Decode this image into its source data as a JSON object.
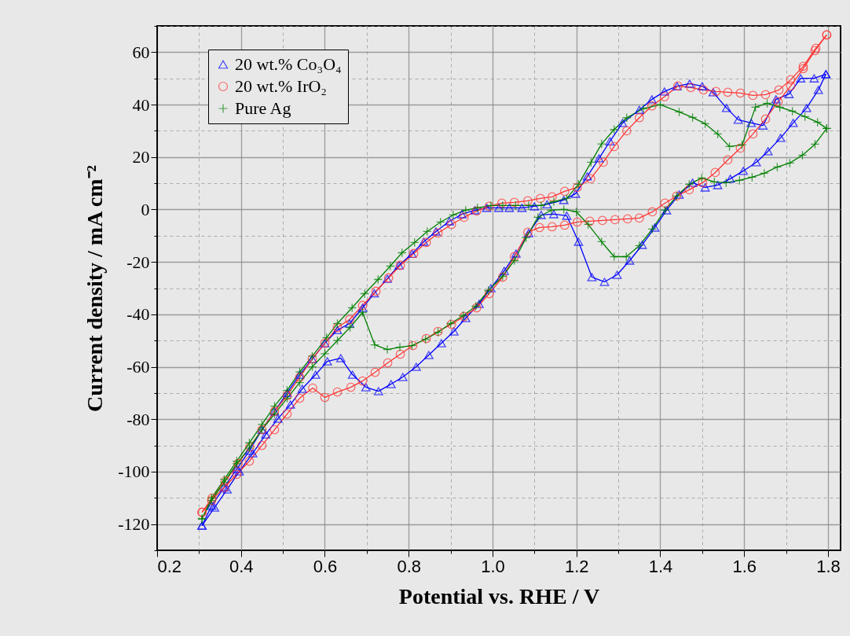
{
  "chart_data": {
    "type": "line",
    "xlabel": "Potential vs. RHE / V",
    "ylabel": "Current density / mA cm⁻²",
    "xlim": [
      0.2,
      1.83
    ],
    "ylim": [
      -130,
      70
    ],
    "xticks": [
      0.2,
      {
        "value": 0.3,
        "label": null
      },
      0.4,
      {
        "value": 0.5,
        "label": null
      },
      0.6,
      {
        "value": 0.7,
        "label": null
      },
      0.8,
      {
        "value": 0.9,
        "label": null
      },
      {
        "value": 1.0,
        "label": "1.0"
      },
      {
        "value": 1.1,
        "label": null
      },
      1.2,
      {
        "value": 1.3,
        "label": null
      },
      1.4,
      {
        "value": 1.5,
        "label": null
      },
      1.6,
      {
        "value": 1.7,
        "label": null
      },
      1.8
    ],
    "yticks": [
      {
        "value": -130,
        "label": null
      },
      -120,
      {
        "value": -110,
        "label": null
      },
      -100,
      {
        "value": -90,
        "label": null
      },
      -80,
      {
        "value": -70,
        "label": null
      },
      -60,
      {
        "value": -50,
        "label": null
      },
      -40,
      {
        "value": -30,
        "label": null
      },
      -20,
      {
        "value": -10,
        "label": null
      },
      0,
      {
        "value": 10,
        "label": null
      },
      20,
      {
        "value": 30,
        "label": null
      },
      40,
      {
        "value": 50,
        "label": null
      },
      60,
      {
        "value": 70,
        "label": null
      }
    ],
    "grid": true,
    "legend": "top left",
    "line_style": "solid",
    "series": [
      {
        "name": "20 wt.% Co₃O₄",
        "color": "#0000ff",
        "marker": "triangle",
        "x": [
          0.307,
          0.33,
          0.36,
          0.39,
          0.42,
          0.45,
          0.48,
          0.51,
          0.54,
          0.57,
          0.6,
          0.63,
          0.659,
          0.69,
          0.718,
          0.749,
          0.777,
          0.808,
          0.836,
          0.865,
          0.897,
          0.927,
          0.958,
          0.986,
          1.015,
          1.04,
          1.07,
          1.1,
          1.13,
          1.17,
          1.198,
          1.226,
          1.254,
          1.28,
          1.31,
          1.35,
          1.38,
          1.41,
          1.44,
          1.47,
          1.5,
          1.526,
          1.558,
          1.586,
          1.617,
          1.645,
          1.676,
          1.707,
          1.735,
          1.767,
          1.795
        ],
        "values": [
          -120.6,
          -113,
          -106,
          -99,
          -92,
          -84,
          -77,
          -70,
          -63,
          -57,
          -51,
          -46,
          -43.5,
          -37.5,
          -32,
          -26.4,
          -21.3,
          -16.9,
          -12.3,
          -8.4,
          -4.5,
          -1.8,
          -0.3,
          0.6,
          0.6,
          0.6,
          0.6,
          1.2,
          2,
          3.6,
          6,
          12.6,
          19.5,
          26,
          33,
          38,
          42,
          45,
          47,
          48,
          47,
          44.7,
          38.7,
          34.2,
          33,
          32,
          42,
          44,
          50,
          50,
          51.6
        ]
      },
      {
        "color": "#0000ff",
        "marker": "triangle",
        "x": [
          1.795,
          1.777,
          1.749,
          1.717,
          1.687,
          1.657,
          1.629,
          1.598,
          1.567,
          1.537,
          1.507,
          1.477,
          1.445,
          1.415,
          1.387,
          1.357,
          1.327,
          1.297,
          1.267,
          1.237,
          1.205,
          1.177,
          1.146,
          1.116,
          1.086,
          1.056,
          1.028,
          0.996,
          0.968,
          0.936,
          0.908,
          0.878,
          0.848,
          0.818,
          0.786,
          0.758,
          0.728,
          0.698,
          0.666,
          0.638,
          0.606,
          0.578,
          0.546,
          0.518,
          0.488,
          0.459,
          0.428,
          0.396,
          0.367,
          0.337,
          0.307
        ],
        "values": [
          51.6,
          45.6,
          38.7,
          33,
          27.3,
          22.2,
          18,
          14.7,
          11.7,
          9.3,
          8.4,
          10.2,
          5.7,
          -0.3,
          -6.9,
          -13.5,
          -19.5,
          -24.9,
          -27.6,
          -25.8,
          -12.3,
          -2.4,
          -1.8,
          -2.1,
          -9,
          -16.8,
          -23.4,
          -30,
          -36,
          -41.4,
          -46.5,
          -51,
          -55.5,
          -60,
          -63.9,
          -66.6,
          -69.3,
          -67.8,
          -63,
          -56.7,
          -57.9,
          -63,
          -68.4,
          -74.4,
          -79.8,
          -85.8,
          -93,
          -99.9,
          -106.8,
          -113.7,
          -120.6
        ]
      },
      {
        "name": "20 wt.% IrO₂",
        "color": "#ff3333",
        "marker": "circle",
        "x": [
          0.307,
          0.331,
          0.363,
          0.393,
          0.421,
          0.45,
          0.48,
          0.51,
          0.54,
          0.57,
          0.6,
          0.63,
          0.659,
          0.69,
          0.722,
          0.752,
          0.78,
          0.812,
          0.842,
          0.87,
          0.902,
          0.932,
          0.962,
          0.992,
          1.022,
          1.052,
          1.084,
          1.114,
          1.142,
          1.172,
          1.202,
          1.234,
          1.264,
          1.29,
          1.32,
          1.35,
          1.38,
          1.41,
          1.442,
          1.473,
          1.503,
          1.533,
          1.561,
          1.591,
          1.621,
          1.651,
          1.683,
          1.711,
          1.741,
          1.771,
          1.797
        ],
        "values": [
          -115.5,
          -110.1,
          -103.5,
          -96.9,
          -90.6,
          -84,
          -77,
          -71,
          -64,
          -57,
          -51,
          -45,
          -42,
          -36.6,
          -31.2,
          -26.1,
          -21.3,
          -16.8,
          -12.6,
          -9,
          -5.7,
          -3,
          -0.6,
          1.2,
          2.4,
          2.7,
          3.3,
          4.2,
          4.8,
          6.9,
          8.4,
          11.7,
          18,
          24,
          30,
          35,
          39.5,
          43,
          47.1,
          46.5,
          45.6,
          45,
          44.7,
          44.4,
          43.5,
          43.8,
          45.6,
          49.5,
          54.6,
          61.5,
          66.6
        ]
      },
      {
        "color": "#ff3333",
        "marker": "circle",
        "x": [
          1.797,
          1.769,
          1.741,
          1.711,
          1.681,
          1.651,
          1.621,
          1.591,
          1.561,
          1.531,
          1.501,
          1.469,
          1.439,
          1.411,
          1.381,
          1.35,
          1.322,
          1.292,
          1.262,
          1.232,
          1.202,
          1.172,
          1.142,
          1.112,
          1.084,
          1.052,
          1.024,
          0.992,
          0.962,
          0.932,
          0.902,
          0.87,
          0.842,
          0.81,
          0.78,
          0.75,
          0.72,
          0.69,
          0.662,
          0.63,
          0.6,
          0.571,
          0.54,
          0.51,
          0.48,
          0.45,
          0.42,
          0.39,
          0.36,
          0.33,
          0.307
        ],
        "values": [
          66.6,
          60.6,
          53.7,
          47.1,
          41.1,
          34.5,
          28.8,
          23.4,
          18.9,
          14.1,
          10.2,
          7.5,
          5.1,
          2.4,
          -0.9,
          -3.3,
          -3.6,
          -3.9,
          -4.2,
          -4.5,
          -4.8,
          -6,
          -6.6,
          -6.9,
          -8.7,
          -18,
          -25.8,
          -32.1,
          -37.5,
          -40.8,
          -43.8,
          -46.5,
          -49.2,
          -51.9,
          -55.2,
          -58.5,
          -62.1,
          -65.4,
          -67.8,
          -69.6,
          -71.7,
          -68.1,
          -72,
          -78,
          -84,
          -90,
          -96,
          -101,
          -106,
          -111,
          -115.5
        ]
      },
      {
        "name": "Pure Ag",
        "color": "#008000",
        "marker": "cross",
        "x": [
          0.307,
          0.33,
          0.36,
          0.39,
          0.42,
          0.45,
          0.48,
          0.51,
          0.54,
          0.57,
          0.604,
          0.63,
          0.665,
          0.695,
          0.727,
          0.756,
          0.784,
          0.814,
          0.844,
          0.876,
          0.906,
          0.936,
          0.964,
          0.996,
          1.024,
          1.055,
          1.086,
          1.116,
          1.146,
          1.177,
          1.205,
          1.235,
          1.26,
          1.29,
          1.32,
          1.36,
          1.4,
          1.445,
          1.477,
          1.507,
          1.537,
          1.565,
          1.595,
          1.627,
          1.655,
          1.685,
          1.715,
          1.745,
          1.775,
          1.797
        ],
        "values": [
          -118,
          -110,
          -103,
          -96,
          -89,
          -82,
          -75,
          -69,
          -62,
          -56,
          -48.9,
          -43.5,
          -37.5,
          -32.1,
          -26.7,
          -21.6,
          -16.5,
          -12.6,
          -8.4,
          -4.8,
          -2.1,
          -0.3,
          0.6,
          1.5,
          1.5,
          1.5,
          1.5,
          1.5,
          3,
          4.2,
          9.6,
          18,
          25,
          30.5,
          35,
          38.5,
          40,
          37.2,
          35.1,
          32.7,
          28.8,
          24,
          24.6,
          39,
          40.5,
          39,
          37.5,
          35.4,
          33.3,
          30.9
        ]
      },
      {
        "color": "#008000",
        "marker": "cross",
        "x": [
          1.797,
          1.769,
          1.739,
          1.709,
          1.679,
          1.648,
          1.619,
          1.589,
          1.557,
          1.529,
          1.499,
          1.469,
          1.439,
          1.411,
          1.381,
          1.35,
          1.319,
          1.29,
          1.26,
          1.228,
          1.2,
          1.17,
          1.14,
          1.108,
          1.08,
          1.052,
          1.024,
          0.99,
          0.96,
          0.93,
          0.9,
          0.87,
          0.84,
          0.808,
          0.779,
          0.749,
          0.719,
          0.69,
          0.66,
          0.63,
          0.6,
          0.57,
          0.54,
          0.51,
          0.48,
          0.45,
          0.42,
          0.39,
          0.36,
          0.33,
          0.307
        ],
        "values": [
          30.9,
          24.9,
          20.7,
          17.7,
          16.2,
          13.8,
          12.3,
          11.1,
          10.2,
          10.5,
          12,
          9.6,
          5.1,
          -0.3,
          -7.5,
          -13.8,
          -18,
          -18,
          -12.3,
          -5.7,
          -0.9,
          0,
          -0.3,
          -3,
          -10.8,
          -19.5,
          -25.5,
          -30.9,
          -36.9,
          -40.5,
          -43.5,
          -46.8,
          -49.5,
          -51.9,
          -52.5,
          -53.4,
          -51.6,
          -39.3,
          -45,
          -50,
          -55,
          -60,
          -66,
          -72,
          -78,
          -84,
          -91,
          -97,
          -104,
          -111,
          -118
        ]
      }
    ]
  }
}
